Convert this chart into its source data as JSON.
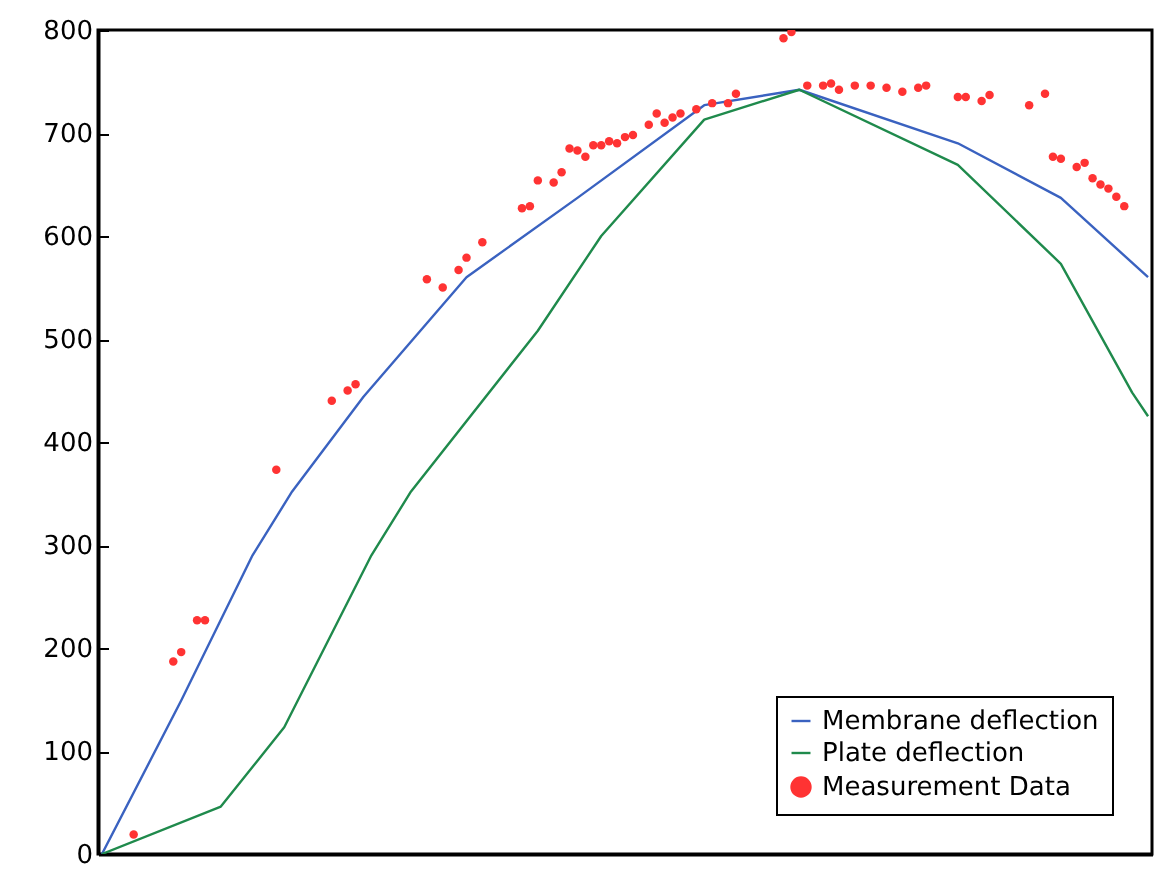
{
  "chart_data": {
    "type": "line",
    "categories": [
      null,
      null,
      null,
      null,
      null,
      null,
      null,
      null,
      null,
      null,
      null,
      null,
      null,
      null,
      null,
      null,
      null,
      null,
      null,
      null,
      null,
      null,
      null,
      null,
      null,
      null,
      null,
      null,
      null,
      null,
      null,
      null,
      null,
      null,
      null,
      null,
      null,
      null,
      null,
      null,
      null,
      null,
      null,
      null,
      null,
      null,
      null,
      null,
      null,
      null,
      null,
      null,
      null,
      null,
      null,
      null,
      null,
      null,
      null,
      null,
      null,
      null,
      null,
      null,
      null,
      null,
      null,
      null,
      null,
      null,
      null,
      null,
      null,
      null,
      null,
      null,
      null,
      null,
      null,
      null,
      null,
      null,
      null,
      null,
      null,
      null,
      null,
      null,
      null,
      null,
      null,
      null,
      null,
      null,
      null,
      null,
      null,
      null,
      null,
      null,
      null,
      null,
      null,
      null,
      null,
      null,
      null,
      null,
      null,
      null,
      null,
      null,
      null,
      null,
      null,
      null,
      null,
      null,
      null,
      null,
      null,
      null,
      null,
      null,
      null,
      null,
      null,
      null,
      null,
      null,
      null,
      null,
      null
    ],
    "ylim": [
      0,
      800
    ],
    "yticks": [
      0,
      100,
      200,
      300,
      400,
      500,
      600,
      700,
      800
    ],
    "tick_labels": "y",
    "legend": "bottom right",
    "series": [
      {
        "name": "Membrane deflection",
        "type": "line",
        "color": "#3a62c0",
        "values": [
          0,
          null,
          null,
          null,
          null,
          null,
          null,
          null,
          null,
          null,
          149,
          null,
          null,
          null,
          null,
          null,
          null,
          null,
          null,
          290,
          null,
          null,
          null,
          null,
          352,
          null,
          null,
          null,
          null,
          null,
          null,
          null,
          null,
          444,
          null,
          null,
          null,
          null,
          null,
          null,
          null,
          null,
          null,
          null,
          null,
          null,
          560,
          null,
          null,
          null,
          null,
          null,
          null,
          null,
          null,
          null,
          null,
          null,
          null,
          null,
          637,
          null,
          null,
          null,
          null,
          null,
          null,
          null,
          null,
          null,
          null,
          null,
          null,
          null,
          null,
          null,
          727,
          null,
          null,
          null,
          null,
          null,
          null,
          null,
          null,
          null,
          null,
          null,
          742,
          null,
          null,
          null,
          null,
          null,
          null,
          null,
          null,
          null,
          null,
          null,
          null,
          null,
          null,
          null,
          null,
          null,
          null,
          null,
          690,
          null,
          null,
          null,
          null,
          null,
          null,
          null,
          null,
          null,
          null,
          null,
          null,
          637,
          null,
          null,
          null,
          null,
          null,
          null,
          null,
          null,
          null,
          null,
          560
        ]
      },
      {
        "name": "Plate deflection",
        "type": "line",
        "color": "#1f8a4c",
        "values": [
          0,
          null,
          null,
          null,
          null,
          null,
          null,
          null,
          null,
          null,
          null,
          null,
          null,
          null,
          null,
          46,
          null,
          null,
          null,
          null,
          null,
          null,
          null,
          123,
          null,
          null,
          null,
          null,
          null,
          null,
          null,
          null,
          null,
          null,
          290,
          null,
          null,
          null,
          null,
          352,
          null,
          null,
          null,
          null,
          null,
          null,
          null,
          null,
          null,
          null,
          null,
          null,
          null,
          null,
          null,
          508,
          null,
          null,
          null,
          null,
          null,
          null,
          null,
          600,
          null,
          null,
          null,
          null,
          null,
          null,
          null,
          null,
          null,
          null,
          null,
          null,
          713,
          null,
          null,
          null,
          null,
          null,
          null,
          null,
          null,
          null,
          null,
          null,
          742,
          null,
          null,
          null,
          null,
          null,
          null,
          null,
          null,
          null,
          null,
          null,
          null,
          null,
          null,
          null,
          null,
          null,
          null,
          null,
          669,
          null,
          null,
          null,
          null,
          null,
          null,
          null,
          null,
          null,
          null,
          null,
          null,
          573,
          null,
          null,
          null,
          null,
          null,
          null,
          null,
          null,
          448,
          null,
          425
        ]
      },
      {
        "name": "Measurement Data",
        "type": "scatter",
        "color": "#ff3333",
        "marker": "circle",
        "values": [
          null,
          null,
          null,
          null,
          19,
          null,
          null,
          null,
          null,
          187,
          196,
          null,
          227,
          227,
          null,
          null,
          null,
          null,
          null,
          null,
          null,
          null,
          373,
          null,
          null,
          null,
          null,
          null,
          null,
          440,
          null,
          450,
          456,
          null,
          null,
          null,
          null,
          null,
          null,
          null,
          null,
          558,
          null,
          550,
          null,
          567,
          579,
          null,
          594,
          null,
          null,
          null,
          null,
          627,
          629,
          654,
          null,
          652,
          662,
          685,
          683,
          677,
          688,
          688,
          692,
          690,
          696,
          698,
          null,
          708,
          719,
          710,
          715,
          719,
          null,
          723,
          null,
          729,
          null,
          729,
          738,
          null,
          null,
          null,
          null,
          null,
          792,
          798,
          null,
          746,
          null,
          746,
          748,
          742,
          null,
          746,
          null,
          746,
          null,
          744,
          null,
          740,
          null,
          744,
          746,
          null,
          null,
          null,
          735,
          735,
          null,
          731,
          737,
          null,
          null,
          null,
          null,
          727,
          null,
          738,
          677,
          675,
          null,
          667,
          671,
          656,
          650,
          646,
          638,
          629,
          null,
          null,
          null
        ]
      }
    ]
  }
}
